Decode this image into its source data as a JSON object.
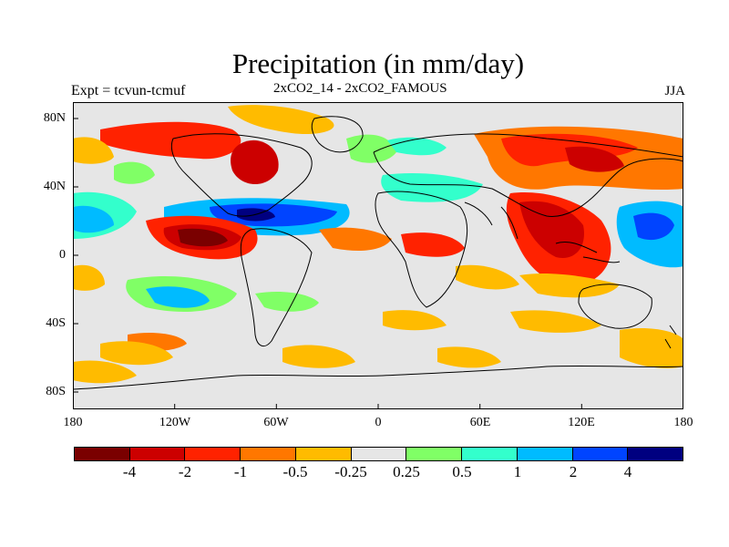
{
  "title": "Precipitation (in mm/day)",
  "experiment_label": "Expt = tcvun-tcmuf",
  "subtitle": "2xCO2_14 - 2xCO2_FAMOUS",
  "season": "JJA",
  "lat_ticks": [
    "80N",
    "40N",
    "0",
    "40S",
    "80S"
  ],
  "lon_ticks": [
    "180",
    "120W",
    "60W",
    "0",
    "60E",
    "120E",
    "180"
  ],
  "colorbar": {
    "colors": [
      "#7a0000",
      "#cc0000",
      "#ff2200",
      "#ff7700",
      "#ffbb00",
      "#e6e6e6",
      "#80ff66",
      "#33ffcc",
      "#00bbff",
      "#0044ff",
      "#000080"
    ],
    "labels": [
      "-4",
      "-2",
      "-1",
      "-0.5",
      "-0.25",
      "0.25",
      "0.5",
      "1",
      "2",
      "4"
    ]
  }
}
